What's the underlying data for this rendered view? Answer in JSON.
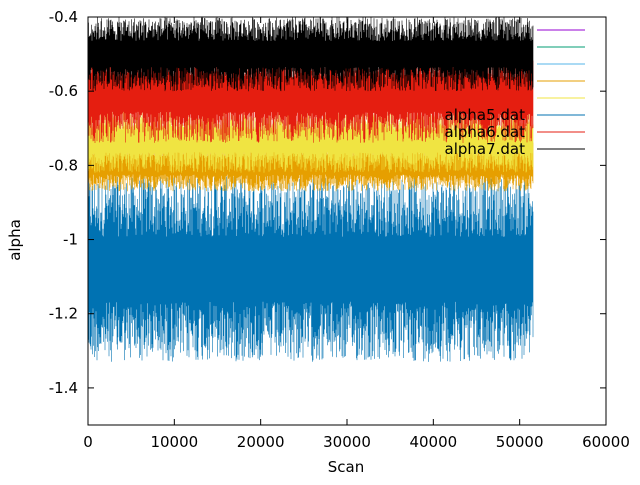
{
  "chart_data": {
    "type": "line",
    "title": "",
    "xlabel": "Scan",
    "ylabel": "alpha",
    "xlim": [
      0,
      60000
    ],
    "ylim": [
      -1.5,
      -0.4
    ],
    "x_ticks": [
      0,
      10000,
      20000,
      30000,
      40000,
      50000,
      60000
    ],
    "x_tick_labels": [
      "0",
      "10000",
      "20000",
      "30000",
      "40000",
      "50000",
      "60000"
    ],
    "y_ticks": [
      -0.4,
      -0.6,
      -0.8,
      -1,
      -1.2,
      -1.4
    ],
    "y_tick_labels": [
      "-0.4",
      "-0.6",
      "-0.8",
      "-1",
      "-1.2",
      "-1.4"
    ],
    "grid": false,
    "legend_position": "top-right",
    "scan_range": [
      0,
      51600
    ],
    "series": [
      {
        "name": "",
        "color": "#9400d3",
        "lower": -1.22,
        "upper": -1.06
      },
      {
        "name": "",
        "color": "#009e73",
        "lower": -1.2,
        "upper": -1.02
      },
      {
        "name": "",
        "color": "#56b4e9",
        "lower": -1.15,
        "upper": -0.98
      },
      {
        "name": "",
        "color": "#e69f00",
        "lower": -0.87,
        "upper": -0.73
      },
      {
        "name": "",
        "color": "#f0e442",
        "lower": -0.82,
        "upper": -0.65
      },
      {
        "name": "alpha5.dat",
        "color": "#0072b2",
        "lower": -1.33,
        "upper": -0.83
      },
      {
        "name": "alpha6.dat",
        "color": "#e51e10",
        "lower": -0.74,
        "upper": -0.48
      },
      {
        "name": "alpha7.dat",
        "color": "#000000",
        "lower": -0.6,
        "upper": -0.4
      }
    ]
  }
}
